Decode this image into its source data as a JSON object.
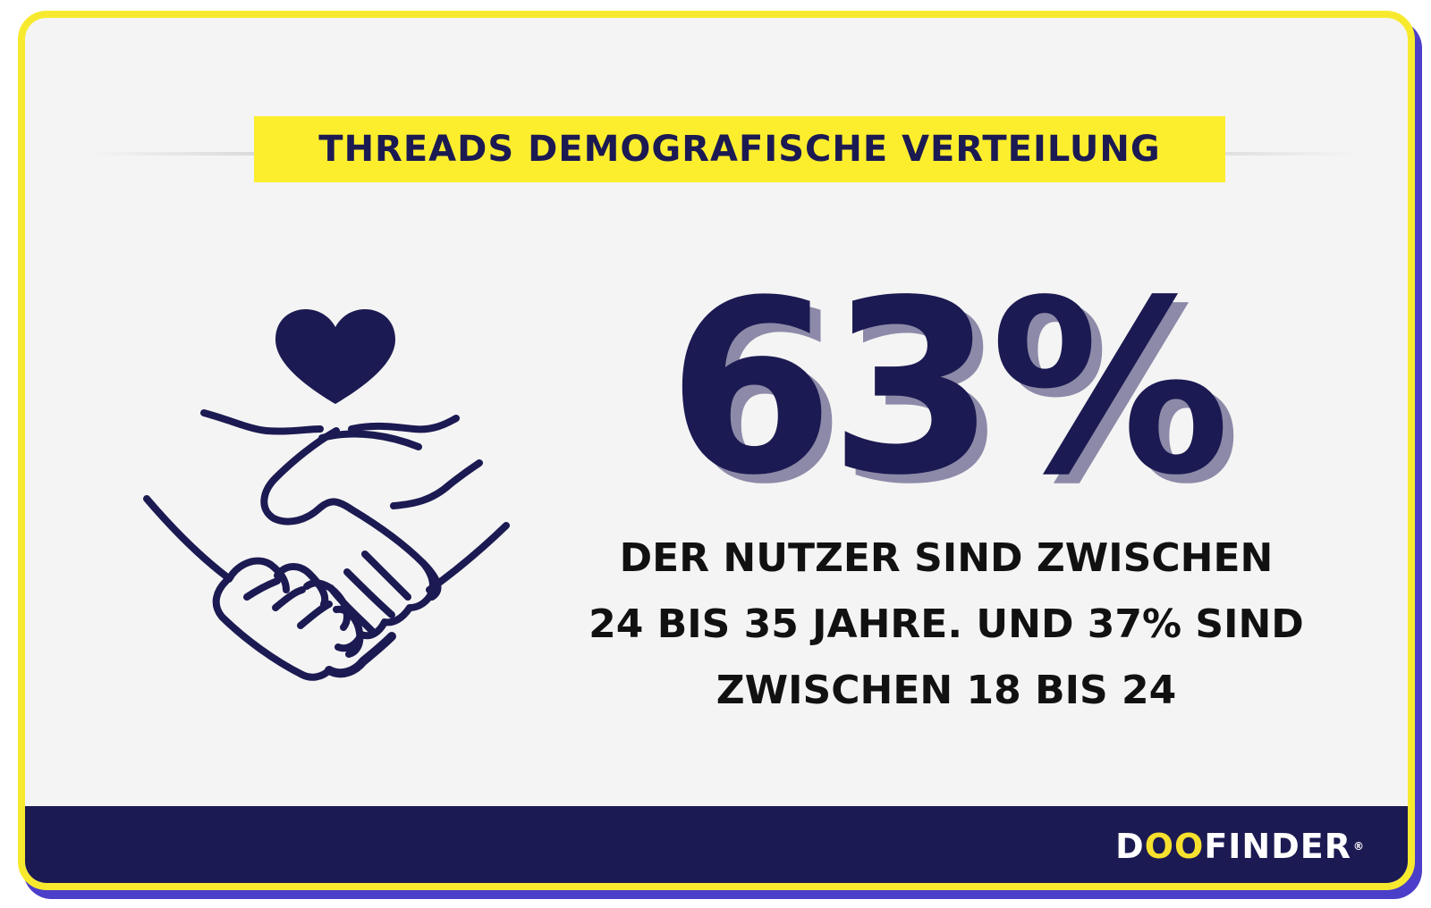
{
  "header": {
    "title": "THREADS DEMOGRAFISCHE VERTEILUNG"
  },
  "icon": {
    "name": "handshake-heart-icon"
  },
  "stat": {
    "value": "63%",
    "line1": "DER NUTZER SIND ZWISCHEN",
    "line2": "24 BIS 35 JAHRE. UND 37% SIND",
    "line3": "ZWISCHEN 18 BIS 24"
  },
  "footer": {
    "brand_prefix": "D",
    "brand_oo": "OO",
    "brand_suffix": "FINDER",
    "brand_mark": "®"
  },
  "colors": {
    "navy": "#1c1a52",
    "yellow": "#fdee2d",
    "shadow": "#8c8aa8",
    "purple": "#4b3fc9",
    "background": "#f4f4f4"
  }
}
